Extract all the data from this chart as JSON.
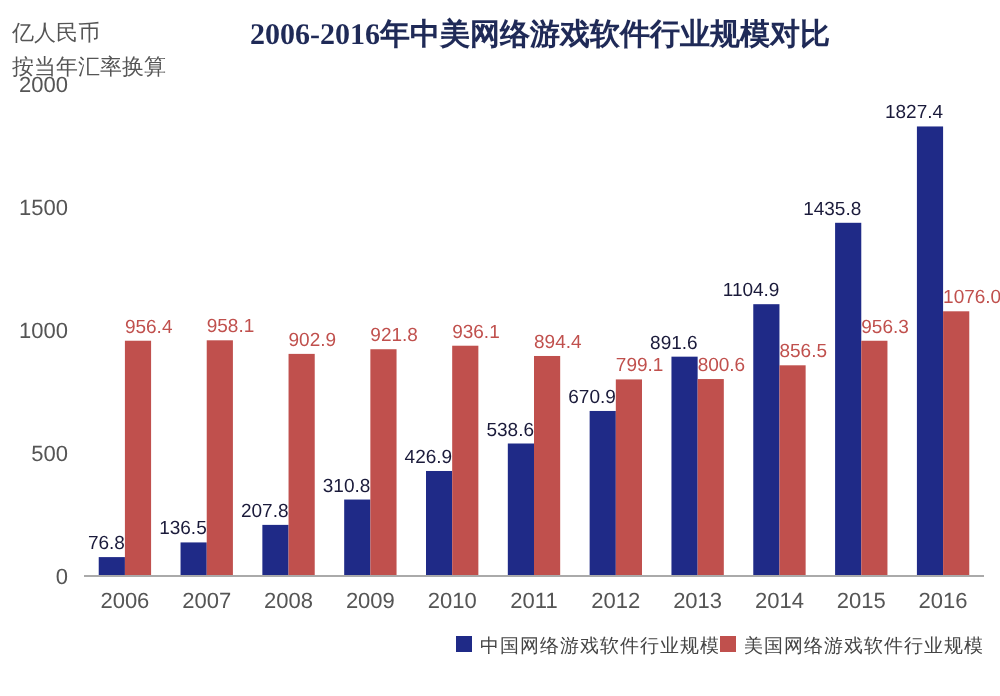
{
  "chart_data": {
    "type": "bar",
    "title": "2006-2016年中美网络游戏软件行业规模对比",
    "ylabel": "亿人民币",
    "subtitle": "按当年汇率换算",
    "categories": [
      "2006",
      "2007",
      "2008",
      "2009",
      "2010",
      "2011",
      "2012",
      "2013",
      "2014",
      "2015",
      "2016"
    ],
    "series": [
      {
        "name": "中国网络游戏软件行业规模",
        "color": "#1f2a87",
        "values": [
          76.8,
          136.5,
          207.8,
          310.8,
          426.9,
          538.6,
          670.9,
          891.6,
          1104.9,
          1435.8,
          1827.4
        ],
        "value_labels": [
          "76.8",
          "136.5",
          "207.8",
          "310.8",
          "426.9",
          "538.6",
          "670.9",
          "891.6",
          "1104.9",
          "1435.8",
          "1827.4"
        ]
      },
      {
        "name": "美国网络游戏软件行业规模",
        "color": "#c0504d",
        "values": [
          956.4,
          958.1,
          902.9,
          921.8,
          936.1,
          894.4,
          799.1,
          800.6,
          856.5,
          956.3,
          1076.0
        ],
        "value_labels": [
          "956.4",
          "958.1",
          "902.9",
          "921.8",
          "936.1",
          "894.4",
          "799.1",
          "800.6",
          "856.5",
          "956.3",
          "1076.0"
        ]
      }
    ],
    "ylim": [
      0,
      2000
    ],
    "yticks": [
      0,
      500,
      1000,
      1500,
      2000
    ],
    "grid": false,
    "legend": "bottom right"
  }
}
